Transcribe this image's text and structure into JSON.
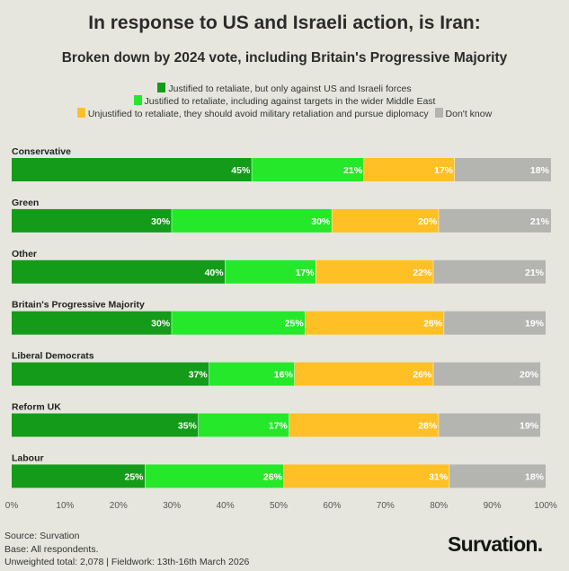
{
  "title": "In response to US and Israeli action, is Iran:",
  "subtitle": "Broken down by 2024 vote, including Britain's Progressive Majority",
  "colors": {
    "justified_us_israel": "#149b1a",
    "justified_wider": "#26e82b",
    "unjustified": "#ffc025",
    "dont_know": "#b4b4b1"
  },
  "chart_data": {
    "type": "bar",
    "orientation": "horizontal",
    "stacked": true,
    "categories": [
      "Conservative",
      "Green",
      "Other",
      "Britain's Progressive Majority",
      "Liberal Democrats",
      "Reform UK",
      "Labour"
    ],
    "series": [
      {
        "name": "Justified to retaliate, but only against US and Israeli forces",
        "color": "#149b1a",
        "values": [
          45,
          30,
          40,
          30,
          37,
          35,
          25
        ],
        "labels": [
          "45%",
          "30%",
          "40%",
          "30%",
          "37%",
          "35%",
          "25%"
        ]
      },
      {
        "name": "Justified to retaliate, including against targets in the wider Middle East",
        "color": "#26e82b",
        "values": [
          21,
          30,
          17,
          25,
          16,
          17,
          26
        ],
        "labels": [
          "21%",
          "30%",
          "17%",
          "25%",
          "16%",
          "17%",
          "26%"
        ]
      },
      {
        "name": "Unjustified to retaliate, they should avoid military retaliation and pursue diplomacy",
        "color": "#ffc025",
        "values": [
          17,
          20,
          22,
          26,
          26,
          28,
          31
        ],
        "labels": [
          "17%",
          "20%",
          "22%",
          "26%",
          "26%",
          "28%",
          "31%"
        ]
      },
      {
        "name": "Don't know",
        "color": "#b4b4b1",
        "values": [
          18,
          21,
          21,
          19,
          20,
          19,
          18
        ],
        "labels": [
          "18%",
          "21%",
          "21%",
          "19%",
          "20%",
          "19%",
          "18%"
        ]
      }
    ],
    "xlim": [
      0,
      100
    ],
    "x_ticks": [
      "0%",
      "10%",
      "20%",
      "30%",
      "40%",
      "50%",
      "60%",
      "70%",
      "80%",
      "90%",
      "100%"
    ],
    "legend_position": "top",
    "grid": false
  },
  "footer": {
    "source": "Source: Survation",
    "base": "Base: All respondents.",
    "fieldwork": "Unweighted total: 2,078 | Fieldwork: 13th-16th March 2026"
  },
  "brand": "Survation."
}
